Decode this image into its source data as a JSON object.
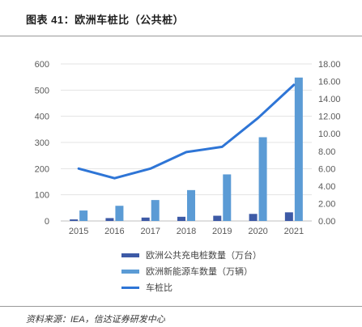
{
  "figure": {
    "title": "图表 41：欧洲车桩比（公共桩）",
    "source": "资料来源：IEA，信达证券研发中心"
  },
  "colors": {
    "charger_bar": "#3d5aa6",
    "vehicle_bar": "#5b9bd5",
    "ratio_line": "#2e75d6",
    "grid": "#e3e3e3",
    "axis_text": "#595959"
  },
  "chart_data": {
    "type": "bar+line",
    "categories": [
      "2015",
      "2016",
      "2017",
      "2018",
      "2019",
      "2020",
      "2021"
    ],
    "y_left": {
      "ylim": [
        0,
        600
      ],
      "ticks": [
        "0",
        "100",
        "200",
        "300",
        "400",
        "500",
        "600"
      ]
    },
    "y_right": {
      "ylim": [
        0,
        18
      ],
      "ticks": [
        "0.00",
        "2.00",
        "4.00",
        "6.00",
        "8.00",
        "10.00",
        "12.00",
        "14.00",
        "16.00",
        "18.00"
      ]
    },
    "grid": true,
    "legend_position": "bottom",
    "series": [
      {
        "name": "欧洲公共充电桩数量（万台）",
        "kind": "bar",
        "axis": "left",
        "values": [
          6,
          11,
          13,
          16,
          20,
          27,
          33
        ]
      },
      {
        "name": "欧洲新能源车数量（万辆）",
        "kind": "bar",
        "axis": "left",
        "values": [
          40,
          58,
          80,
          118,
          178,
          320,
          548
        ]
      },
      {
        "name": "车桩比",
        "kind": "line",
        "axis": "right",
        "values": [
          6.0,
          4.9,
          6.0,
          7.9,
          8.5,
          11.8,
          15.6
        ]
      }
    ]
  }
}
